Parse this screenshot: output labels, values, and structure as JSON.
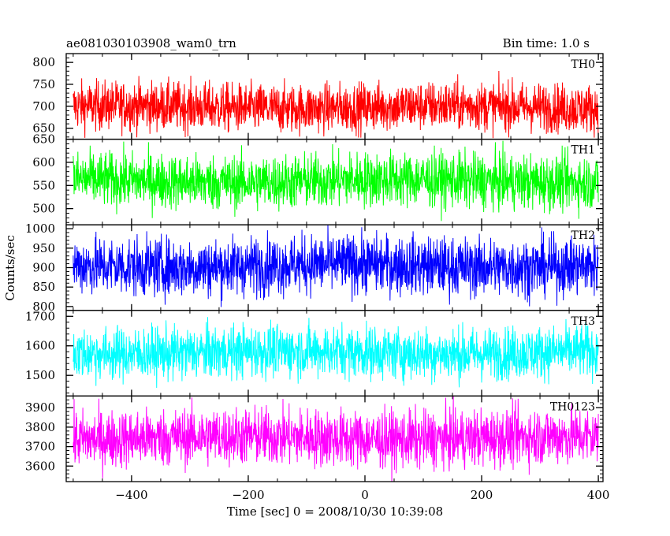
{
  "header": {
    "left_title": "ae081030103908_wam0_trn",
    "right_title": "Bin time: 1.0 s"
  },
  "chart_data": {
    "type": "line",
    "title": "ae081030103908_wam0_trn",
    "subtitle": "Bin time: 1.0 s",
    "xlabel": "Time [sec] 0 = 2008/10/30 10:39:08",
    "ylabel": "Counts/sec",
    "xlim": [
      -512,
      408
    ],
    "x_ticks": [
      -400,
      -200,
      0,
      200,
      400
    ],
    "x_tick_labels": [
      "−400",
      "−200",
      "0",
      "200",
      "400"
    ],
    "bin_time": 1.0,
    "grid": false,
    "panels": [
      {
        "name": "TH0",
        "color": "#ff0000",
        "ylim": [
          625,
          820
        ],
        "y_ticks": [
          650,
          700,
          750,
          800
        ],
        "mean": 698,
        "amplitude": 28,
        "x_range": [
          -500,
          400
        ]
      },
      {
        "name": "TH1",
        "color": "#00ff00",
        "ylim": [
          465,
          650
        ],
        "y_ticks": [
          500,
          550,
          600,
          650
        ],
        "mean": 560,
        "amplitude": 30,
        "x_range": [
          -500,
          400
        ]
      },
      {
        "name": "TH2",
        "color": "#0000ff",
        "ylim": [
          790,
          1010
        ],
        "y_ticks": [
          800,
          850,
          900,
          950,
          1000
        ],
        "mean": 905,
        "amplitude": 38,
        "x_range": [
          -500,
          400
        ]
      },
      {
        "name": "TH3",
        "color": "#00ffff",
        "ylim": [
          1430,
          1720
        ],
        "y_ticks": [
          1500,
          1600,
          1700
        ],
        "mean": 1578,
        "amplitude": 45,
        "x_range": [
          -500,
          400
        ]
      },
      {
        "name": "TH0123",
        "color": "#ff00ff",
        "ylim": [
          3520,
          3960
        ],
        "y_ticks": [
          3600,
          3700,
          3800,
          3900
        ],
        "mean": 3745,
        "amplitude": 75,
        "x_range": [
          -500,
          400
        ]
      }
    ]
  }
}
